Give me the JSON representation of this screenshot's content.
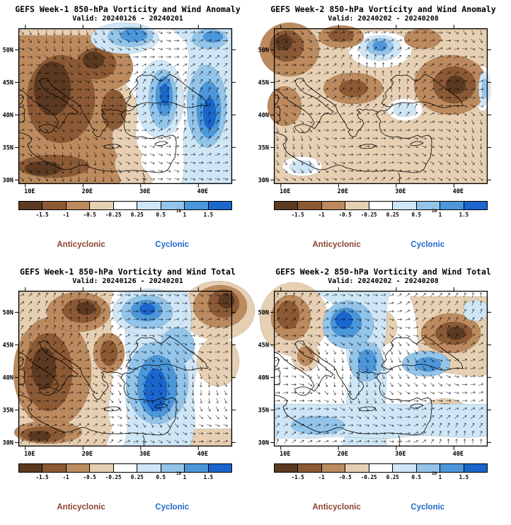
{
  "axes": {
    "lat_ticks": [
      "50N",
      "45N",
      "40N",
      "35N",
      "30N"
    ],
    "lon_ticks": [
      "10E",
      "20E",
      "30E",
      "40E"
    ]
  },
  "colorbar": {
    "ticks": [
      "-1.5",
      "-1",
      "-0.5",
      "-0.25",
      "0.25",
      "0.5",
      "1",
      "1.5"
    ],
    "exponent": "10",
    "segments": [
      "#5b3a21",
      "#8b5a35",
      "#bb8a5e",
      "#e6cfb2",
      "#ffffff",
      "#cfe6f6",
      "#93c4ea",
      "#4b97da",
      "#1a66cc"
    ]
  },
  "legend": {
    "anticyclonic": "Anticyclonic",
    "cyclonic": "Cyclonic",
    "anticyclonic_color": "#8b4330",
    "cyclonic_color": "#2268cf"
  },
  "panels": [
    {
      "id": "week1-anomaly",
      "title": "GEFS Week-1 850-hPa Vorticity and Wind Anomaly",
      "valid": "Valid: 20240126 - 20240201"
    },
    {
      "id": "week2-anomaly",
      "title": "GEFS Week-2 850-hPa Vorticity and Wind Anomaly",
      "valid": "Valid: 20240202 - 20240208"
    },
    {
      "id": "week1-total",
      "title": "GEFS Week-1 850-hPa Vorticity and Wind Total",
      "valid": "Valid: 20240126 - 20240201"
    },
    {
      "id": "week2-total",
      "title": "GEFS Week-2 850-hPa Vorticity and Wind Total",
      "valid": "Valid: 20240202 - 20240208"
    }
  ],
  "chart_data": [
    {
      "type": "heatmap",
      "subtype": "filled-contour map with wind vectors",
      "title": "GEFS Week-1 850-hPa Vorticity and Wind Anomaly",
      "subtitle": "Valid: 20240126 - 20240201",
      "x": {
        "label": "longitude",
        "ticks": [
          "10E",
          "20E",
          "30E",
          "40E"
        ],
        "range_deg": [
          9,
          46
        ]
      },
      "y": {
        "label": "latitude",
        "ticks": [
          "50N",
          "45N",
          "40N",
          "35N",
          "30N"
        ],
        "range_deg": [
          29,
          53
        ]
      },
      "colorbar_levels": [
        -1.5,
        -1,
        -0.5,
        -0.25,
        0.25,
        0.5,
        1,
        1.5
      ],
      "legend": [
        "Anticyclonic",
        "Cyclonic"
      ],
      "features": [
        "Strong anticyclonic (brown) anomaly covering the central/western Mediterranean, Italy, Balkans and North Africa",
        "Cyclonic (blue) anomaly band along the eastern edge of the domain near 40-45E",
        "Cyclonic anomaly patch over eastern Turkey/Levant near 33E and along the northern top edge near 25E"
      ]
    },
    {
      "type": "heatmap",
      "subtype": "filled-contour map with wind vectors",
      "title": "GEFS Week-2 850-hPa Vorticity and Wind Anomaly",
      "subtitle": "Valid: 20240202 - 20240208",
      "x": {
        "label": "longitude",
        "ticks": [
          "10E",
          "20E",
          "30E",
          "40E"
        ],
        "range_deg": [
          9,
          46
        ]
      },
      "y": {
        "label": "latitude",
        "ticks": [
          "50N",
          "45N",
          "40N",
          "35N",
          "30N"
        ],
        "range_deg": [
          29,
          53
        ]
      },
      "colorbar_levels": [
        -1.5,
        -1,
        -0.5,
        -0.25,
        0.25,
        0.5,
        1,
        1.5
      ],
      "legend": [
        "Anticyclonic",
        "Cyclonic"
      ],
      "features": [
        "Weak to moderate anticyclonic anomalies over most of the domain",
        "Anticyclonic centers northwest, north-central, central Mediterranean and east near 40E",
        "Small cyclonic anomaly north of the Aegean near 25E,50N and minor blue spots east and southwest"
      ]
    },
    {
      "type": "heatmap",
      "subtype": "filled-contour map with wind vectors",
      "title": "GEFS Week-1 850-hPa Vorticity and Wind Total",
      "subtitle": "Valid: 20240126 - 20240201",
      "x": {
        "label": "longitude",
        "ticks": [
          "10E",
          "20E",
          "30E",
          "40E"
        ],
        "range_deg": [
          9,
          46
        ]
      },
      "y": {
        "label": "latitude",
        "ticks": [
          "50N",
          "45N",
          "40N",
          "35N",
          "30N"
        ],
        "range_deg": [
          29,
          53
        ]
      },
      "colorbar_levels": [
        -1.5,
        -1,
        -0.5,
        -0.25,
        0.25,
        0.5,
        1,
        1.5
      ],
      "legend": [
        "Anticyclonic",
        "Cyclonic"
      ],
      "features": [
        "Anticyclonic total vorticity over the western Mediterranean, North Africa and northwest of the domain",
        "Strong cyclonic total vorticity over the Aegean, eastern Mediterranean and Turkey",
        "Anticyclonic maximum in the northeast corner near 45E,50N"
      ]
    },
    {
      "type": "heatmap",
      "subtype": "filled-contour map with wind vectors",
      "title": "GEFS Week-2 850-hPa Vorticity and Wind Total",
      "subtitle": "Valid: 20240202 - 20240208",
      "x": {
        "label": "longitude",
        "ticks": [
          "10E",
          "20E",
          "30E",
          "40E"
        ],
        "range_deg": [
          9,
          46
        ]
      },
      "y": {
        "label": "latitude",
        "ticks": [
          "50N",
          "45N",
          "40N",
          "35N",
          "30N"
        ],
        "range_deg": [
          29,
          53
        ]
      },
      "colorbar_levels": [
        -1.5,
        -1,
        -0.5,
        -0.25,
        0.25,
        0.5,
        1,
        1.5
      ],
      "legend": [
        "Anticyclonic",
        "Cyclonic"
      ],
      "features": [
        "Cyclonic bands over the Adriatic/Balkans extending southeast and along 33-38N",
        "Anticyclonic areas northwest corner, over Italy, the central Balkans and a strong center over eastern Anatolia/Caucasus near 40E,45N",
        "Pale cyclonic shading along the southern edge over North Africa"
      ]
    }
  ]
}
